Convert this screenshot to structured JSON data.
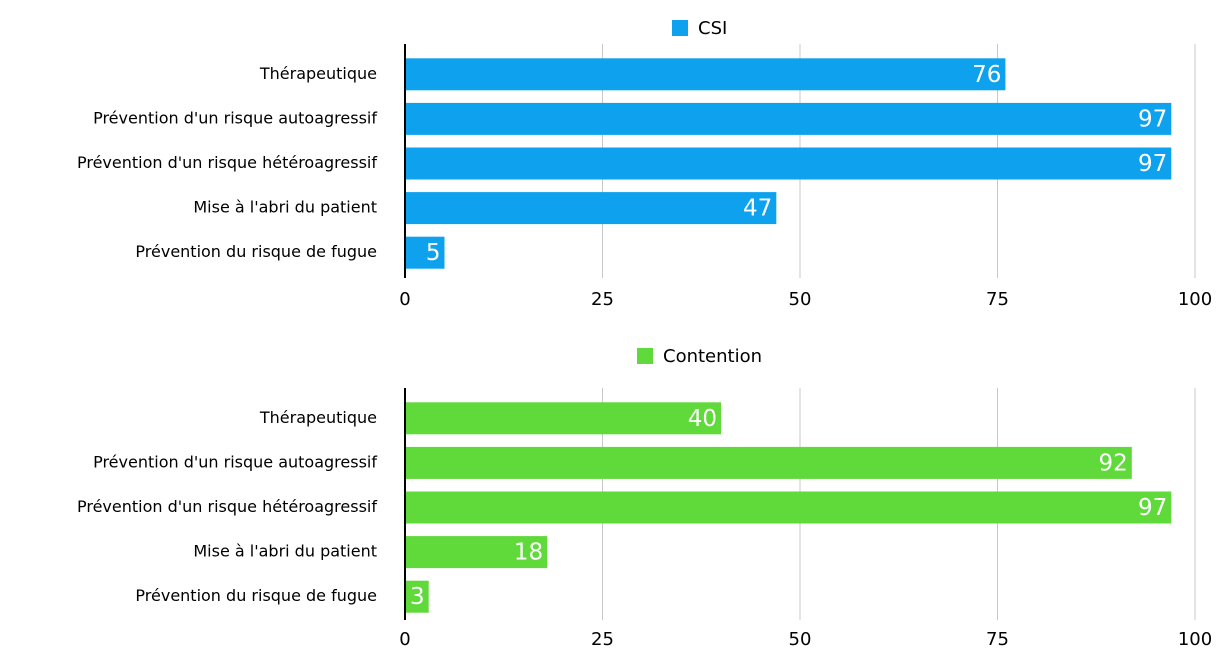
{
  "chart_data": [
    {
      "type": "bar",
      "categories": [
        "Thérapeutique",
        "Prévention d'un risque autoagressif",
        "Prévention d'un risque hétéroagressif",
        "Mise à l'abri du patient",
        "Prévention du risque de fugue"
      ],
      "series": [
        {
          "name": "CSI",
          "color": "#0ea2ee",
          "values": [
            76,
            97,
            97,
            47,
            5
          ]
        }
      ],
      "xlim": [
        0,
        100
      ],
      "xticks": [
        0,
        25,
        50,
        75,
        100
      ],
      "grid": true
    },
    {
      "type": "bar",
      "categories": [
        "Thérapeutique",
        "Prévention d'un risque autoagressif",
        "Prévention d'un risque hétéroagressif",
        "Mise à l'abri du patient",
        "Prévention du risque de fugue"
      ],
      "series": [
        {
          "name": "Contention",
          "color": "#60d93a",
          "values": [
            40,
            92,
            97,
            18,
            3
          ]
        }
      ],
      "xlim": [
        0,
        100
      ],
      "xticks": [
        0,
        25,
        50,
        75,
        100
      ],
      "grid": true
    }
  ]
}
